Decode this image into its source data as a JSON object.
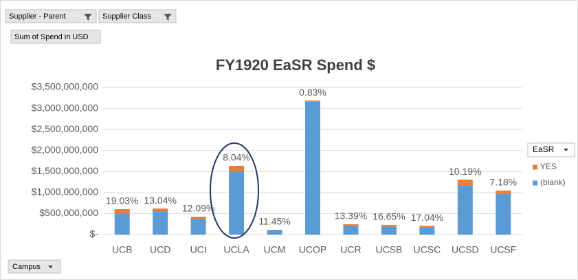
{
  "buttons": {
    "filter_1": "Supplier - Parent",
    "filter_2": "Supplier Class",
    "values_field": "Sum of Spend in USD",
    "axis_field": "Campus"
  },
  "chart_data": {
    "type": "stacked_bar",
    "title": "FY1920 EaSR Spend $",
    "categories": [
      "UCB",
      "UCD",
      "UCI",
      "UCLA",
      "UCM",
      "UCOP",
      "UCR",
      "UCSB",
      "UCSC",
      "UCSD",
      "UCSF"
    ],
    "legend_title": "EaSR",
    "legend": "right",
    "series": [
      {
        "name": "YES",
        "color": "#ed7d31",
        "values": [
          115000000,
          81000000,
          51000000,
          131000000,
          13000000,
          26000000,
          33000000,
          38000000,
          36000000,
          133000000,
          75000000
        ]
      },
      {
        "name": "(blank)",
        "color": "#5b9bd5",
        "values": [
          490000000,
          539000000,
          374000000,
          1504000000,
          102000000,
          3160000000,
          212000000,
          192000000,
          174000000,
          1174000000,
          971000000
        ]
      }
    ],
    "annotations": [
      "19.03%",
      "13.04%",
      "12.09%",
      "8.04%",
      "11.45%",
      "0.83%",
      "13.39%",
      "16.65%",
      "17.04%",
      "10.19%",
      "7.18%"
    ],
    "ylim": [
      0,
      3500000000
    ],
    "yticks": [
      {
        "value": 0,
        "label": "$-"
      },
      {
        "value": 500000000,
        "label": "$500,000,000"
      },
      {
        "value": 1000000000,
        "label": "$1,000,000,000"
      },
      {
        "value": 1500000000,
        "label": "$1,500,000,000"
      },
      {
        "value": 2000000000,
        "label": "$2,000,000,000"
      },
      {
        "value": 2500000000,
        "label": "$2,500,000,000"
      },
      {
        "value": 3000000000,
        "label": "$3,000,000,000"
      },
      {
        "value": 3500000000,
        "label": "$3,500,000,000"
      }
    ],
    "grid": true
  }
}
